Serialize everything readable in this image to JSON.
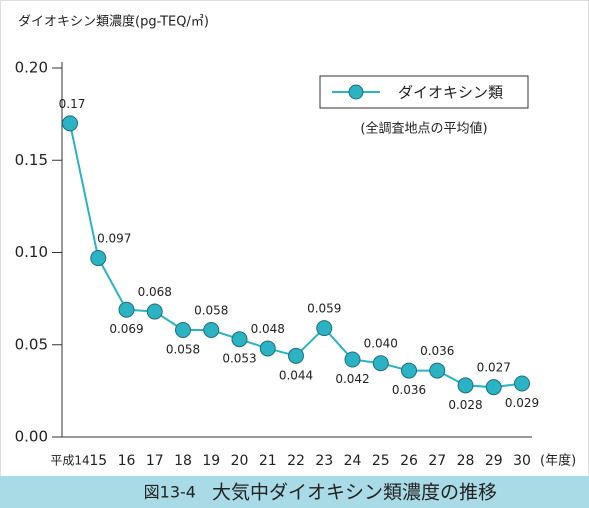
{
  "chart_data": {
    "type": "line",
    "y_axis_label": "ダイオキシン類濃度(pg-TEQ/㎥)",
    "x_axis_unit": "(年度)",
    "figure_label": "図13-4",
    "title": "大気中ダイオキシン類濃度の推移",
    "legend_note": "(全調査地点の平均値)",
    "categories": [
      "平成14",
      "15",
      "16",
      "17",
      "18",
      "19",
      "20",
      "21",
      "22",
      "23",
      "24",
      "25",
      "26",
      "27",
      "28",
      "29",
      "30"
    ],
    "series": [
      {
        "name": "ダイオキシン類",
        "color": "#2bb3c3",
        "values": [
          0.17,
          0.097,
          0.069,
          0.068,
          0.058,
          0.058,
          0.053,
          0.048,
          0.044,
          0.059,
          0.042,
          0.04,
          0.036,
          0.036,
          0.028,
          0.027,
          0.029
        ],
        "value_labels": [
          "0.17",
          "0.097",
          "0.069",
          "0.068",
          "0.058",
          "0.058",
          "0.053",
          "0.048",
          "0.044",
          "0.059",
          "0.042",
          "0.040",
          "0.036",
          "0.036",
          "0.028",
          "0.027",
          "0.029"
        ]
      }
    ],
    "ylim": [
      0,
      0.2
    ],
    "yticks": [
      {
        "value": 0,
        "label": "0.00"
      },
      0.05,
      {
        "value": 0.1,
        "label": "0.10"
      },
      0.15,
      {
        "value": 0.2,
        "label": "0.20"
      }
    ]
  }
}
